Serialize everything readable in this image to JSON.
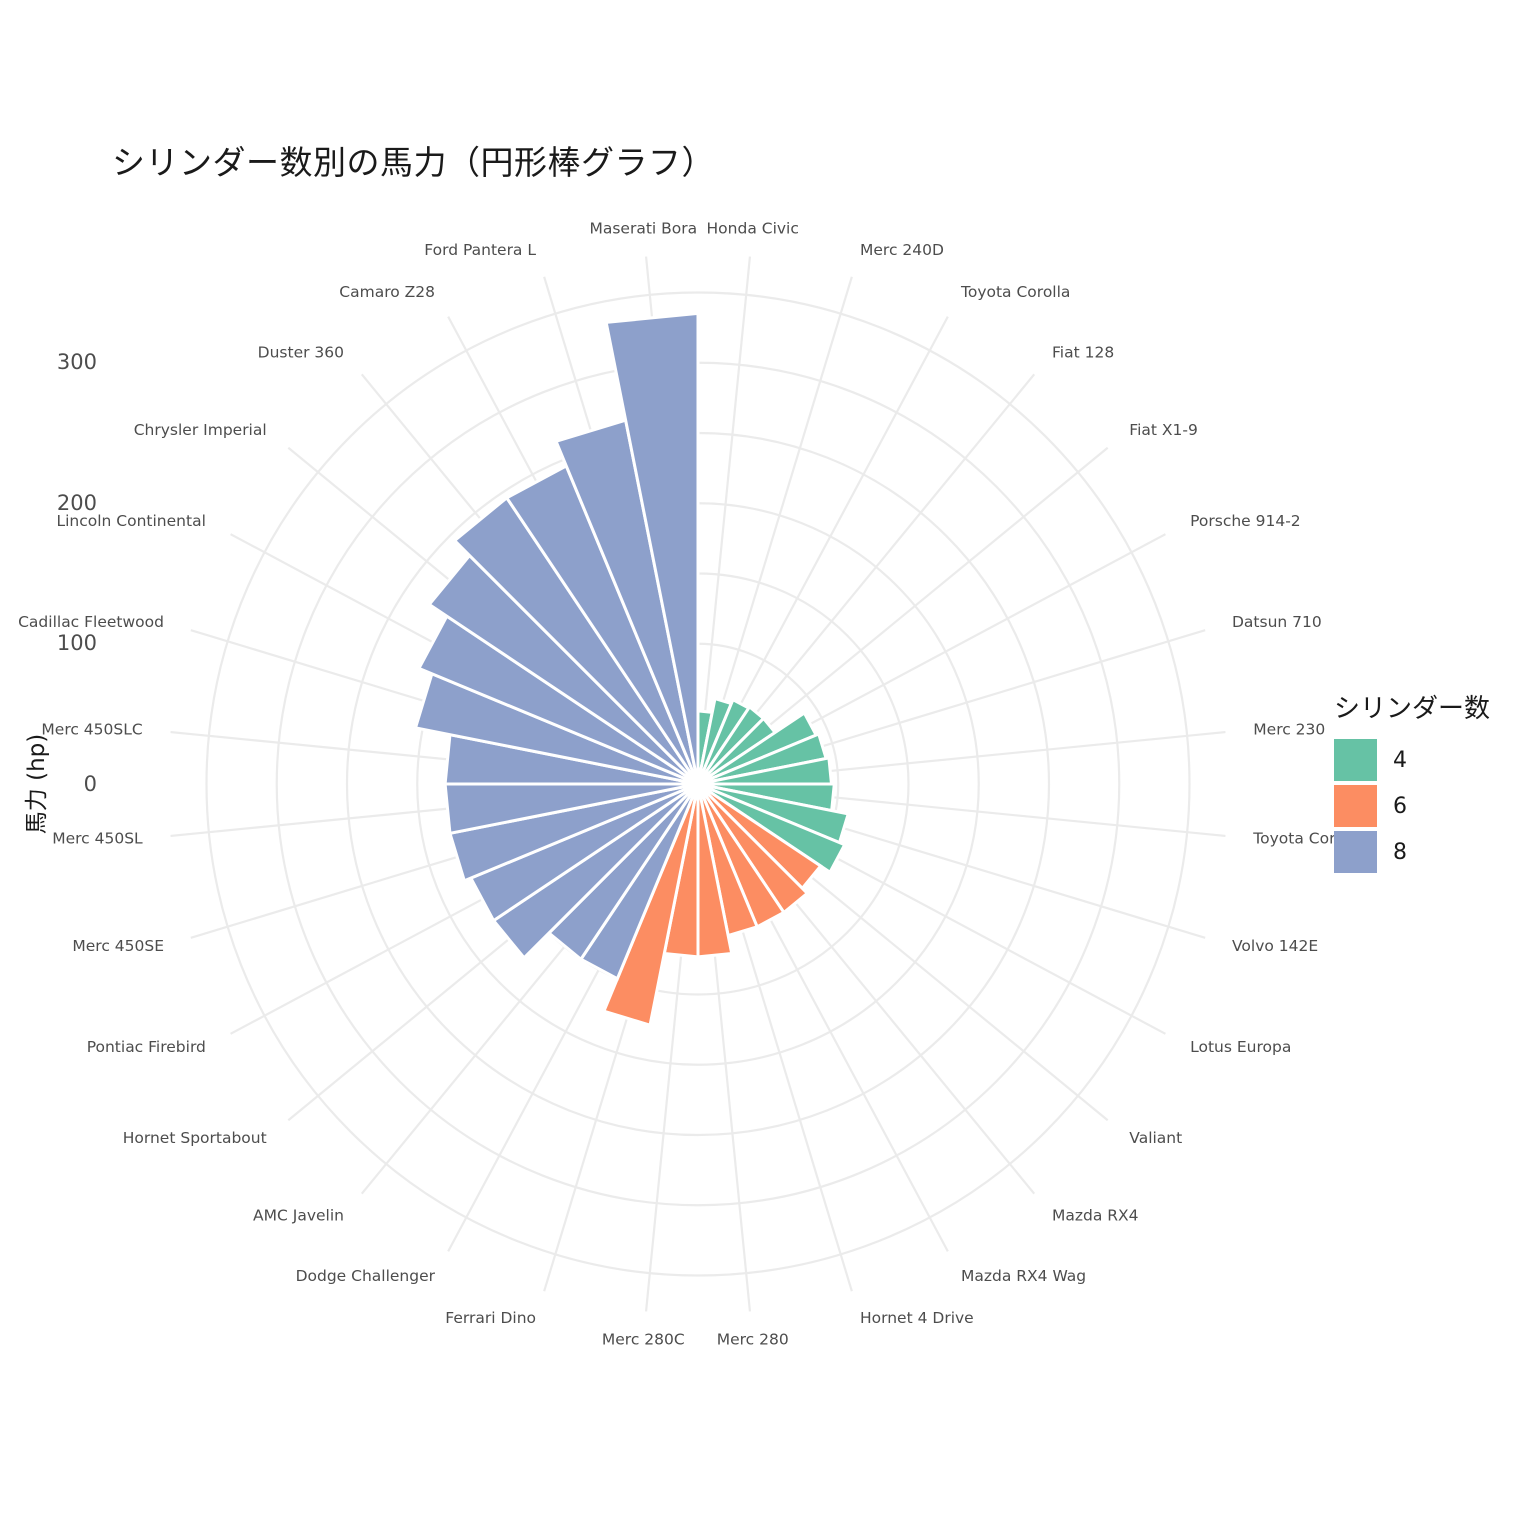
{
  "title": "シリンダー数別の馬力（円形棒グラフ）",
  "chart_data": {
    "type": "bar",
    "coord": "polar",
    "title": "シリンダー数別の馬力（円形棒グラフ）",
    "ylabel": "馬力 (hp)",
    "y_ticks": [
      "0",
      "100",
      "200",
      "300"
    ],
    "legend": {
      "title": "シリンダー数",
      "position": "right",
      "items": [
        {
          "label": "4",
          "color": "#66C2A5"
        },
        {
          "label": "6",
          "color": "#FC8D62"
        },
        {
          "label": "8",
          "color": "#8DA0CB"
        }
      ]
    },
    "grid": true,
    "categories": [
      "Honda Civic",
      "Merc 240D",
      "Toyota Corolla",
      "Fiat 128",
      "Fiat X1-9",
      "Porsche 914-2",
      "Datsun 710",
      "Merc 230",
      "Toyota Corona",
      "Volvo 142E",
      "Lotus Europa",
      "Valiant",
      "Mazda RX4",
      "Mazda RX4 Wag",
      "Hornet 4 Drive",
      "Merc 280",
      "Merc 280C",
      "Ferrari Dino",
      "Dodge Challenger",
      "AMC Javelin",
      "Hornet Sportabout",
      "Pontiac Firebird",
      "Merc 450SE",
      "Merc 450SL",
      "Merc 450SLC",
      "Cadillac Fleetwood",
      "Lincoln Continental",
      "Chrysler Imperial",
      "Duster 360",
      "Camaro Z28",
      "Ford Pantera L",
      "Maserati Bora"
    ],
    "values": [
      52,
      62,
      65,
      66,
      66,
      91,
      93,
      95,
      97,
      109,
      113,
      105,
      110,
      110,
      110,
      123,
      123,
      175,
      150,
      150,
      175,
      175,
      180,
      180,
      180,
      205,
      215,
      230,
      245,
      245,
      264,
      335
    ],
    "cyl": [
      "4",
      "4",
      "4",
      "4",
      "4",
      "4",
      "4",
      "4",
      "4",
      "4",
      "4",
      "6",
      "6",
      "6",
      "6",
      "6",
      "6",
      "6",
      "8",
      "8",
      "8",
      "8",
      "8",
      "8",
      "8",
      "8",
      "8",
      "8",
      "8",
      "8",
      "8",
      "8"
    ]
  }
}
